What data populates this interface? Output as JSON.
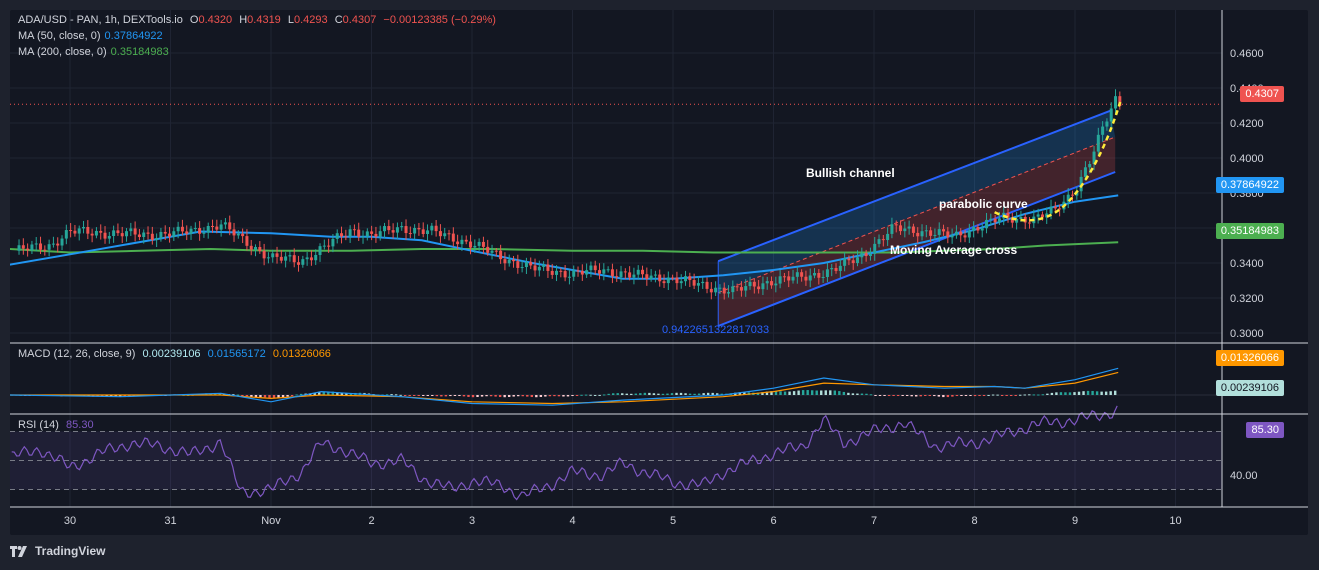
{
  "header": {
    "symbol": "ADA/USD - PAN, 1h, DEXTools.io",
    "o_label": "O",
    "o_value": "0.4320",
    "h_label": "H",
    "h_value": "0.4319",
    "l_label": "L",
    "l_value": "0.4293",
    "c_label": "C",
    "c_value": "0.4307",
    "change": "−0.00123385 (−0.29%)",
    "ma50_label": "MA (50, close, 0)",
    "ma50_value": "0.37864922",
    "ma200_label": "MA (200, close, 0)",
    "ma200_value": "0.35184983",
    "macd_label": "MACD (12, 26, close, 9)",
    "macd_hist": "0.00239106",
    "macd_line": "0.01565172",
    "macd_signal": "0.01326066",
    "rsi_label": "RSI (14)",
    "rsi_value": "85.30"
  },
  "price_tags": {
    "last": "0.4307",
    "ma50": "0.37864922",
    "ma200": "0.35184983",
    "macd_signal": "0.01326066",
    "macd_hist": "0.00239106",
    "rsi": "85.30"
  },
  "annotations": {
    "channel": "Bullish channel",
    "parabolic": "parabolic curve",
    "ma_cross": "Moving Average cross",
    "fib": "0.9422651322817033"
  },
  "brand": "TradingView",
  "colors": {
    "up": "#26a69a",
    "down": "#ef5350",
    "ma50": "#2196f3",
    "ma200": "#4caf50",
    "macd": "#2196f3",
    "signal": "#ff9800",
    "rsi": "#7e57c2",
    "annotation": "#ffeb3b"
  },
  "chart_data": [
    {
      "type": "candlestick",
      "title": "ADA/USD - PAN, 1h, DEXTools.io",
      "x_ticks": [
        "30",
        "31",
        "Nov",
        "2",
        "3",
        "4",
        "5",
        "6",
        "7",
        "8",
        "9",
        "10"
      ],
      "y_ticks": [
        "0.4600",
        "0.4400",
        "0.4200",
        "0.4000",
        "0.3800",
        "0.3600",
        "0.3400",
        "0.3200",
        "0.3000"
      ],
      "ylim": [
        0.29,
        0.47
      ],
      "close_path": [
        [
          29.45,
          0.347
        ],
        [
          29.8,
          0.35
        ],
        [
          30.0,
          0.358
        ],
        [
          30.4,
          0.357
        ],
        [
          30.8,
          0.356
        ],
        [
          31.0,
          0.357
        ],
        [
          31.2,
          0.358
        ],
        [
          31.5,
          0.362
        ],
        [
          31.75,
          0.352
        ],
        [
          32.0,
          0.343
        ],
        [
          32.3,
          0.341
        ],
        [
          32.5,
          0.348
        ],
        [
          32.8,
          0.359
        ],
        [
          33.0,
          0.356
        ],
        [
          33.3,
          0.36
        ],
        [
          33.6,
          0.358
        ],
        [
          34.0,
          0.351
        ],
        [
          34.3,
          0.343
        ],
        [
          34.6,
          0.337
        ],
        [
          35.0,
          0.334
        ],
        [
          35.3,
          0.336
        ],
        [
          35.6,
          0.333
        ],
        [
          36.0,
          0.331
        ],
        [
          36.3,
          0.327
        ],
        [
          36.6,
          0.324
        ],
        [
          37.0,
          0.33
        ],
        [
          37.3,
          0.332
        ],
        [
          37.6,
          0.336
        ],
        [
          37.9,
          0.345
        ],
        [
          38.2,
          0.36
        ],
        [
          38.5,
          0.358
        ],
        [
          38.8,
          0.355
        ],
        [
          39.0,
          0.36
        ],
        [
          39.3,
          0.366
        ],
        [
          39.6,
          0.365
        ],
        [
          39.8,
          0.37
        ],
        [
          40.0,
          0.382
        ],
        [
          40.15,
          0.398
        ],
        [
          40.3,
          0.42
        ],
        [
          40.4,
          0.434
        ],
        [
          40.45,
          0.431
        ]
      ],
      "ma50": [
        [
          29.4,
          0.339
        ],
        [
          30.0,
          0.345
        ],
        [
          30.7,
          0.352
        ],
        [
          31.3,
          0.358
        ],
        [
          32.0,
          0.357
        ],
        [
          32.6,
          0.355
        ],
        [
          33.0,
          0.355
        ],
        [
          33.5,
          0.353
        ],
        [
          34.0,
          0.347
        ],
        [
          34.6,
          0.34
        ],
        [
          35.0,
          0.336
        ],
        [
          35.5,
          0.331
        ],
        [
          36.0,
          0.331
        ],
        [
          36.5,
          0.333
        ],
        [
          37.0,
          0.336
        ],
        [
          37.5,
          0.34
        ],
        [
          38.0,
          0.346
        ],
        [
          38.5,
          0.352
        ],
        [
          39.0,
          0.359
        ],
        [
          39.5,
          0.368
        ],
        [
          40.0,
          0.375
        ],
        [
          40.43,
          0.3786
        ]
      ],
      "ma200": [
        [
          29.4,
          0.348
        ],
        [
          30.0,
          0.346
        ],
        [
          30.7,
          0.347
        ],
        [
          31.4,
          0.348
        ],
        [
          32.0,
          0.347
        ],
        [
          32.8,
          0.347
        ],
        [
          33.5,
          0.348
        ],
        [
          34.2,
          0.348
        ],
        [
          35.0,
          0.347
        ],
        [
          35.7,
          0.347
        ],
        [
          36.4,
          0.346
        ],
        [
          37.0,
          0.346
        ],
        [
          37.6,
          0.346
        ],
        [
          38.2,
          0.346
        ],
        [
          38.7,
          0.347
        ],
        [
          39.2,
          0.348
        ],
        [
          39.7,
          0.35
        ],
        [
          40.43,
          0.3518
        ]
      ],
      "channel_upper": [
        [
          36.45,
          0.341
        ],
        [
          40.35,
          0.427
        ]
      ],
      "channel_middle": [
        [
          36.45,
          0.323
        ],
        [
          40.4,
          0.412
        ]
      ],
      "channel_lower": [
        [
          36.45,
          0.304
        ],
        [
          40.4,
          0.392
        ]
      ],
      "last_price": 0.4307
    },
    {
      "type": "line",
      "title": "MACD (12, 26, close, 9)",
      "series": [
        {
          "name": "MACD",
          "values": [
            [
              29.4,
              0.0
            ],
            [
              30.5,
              -0.001
            ],
            [
              31.5,
              0.001
            ],
            [
              32.0,
              -0.004
            ],
            [
              32.5,
              0.002
            ],
            [
              33.3,
              -0.001
            ],
            [
              34.0,
              -0.005
            ],
            [
              34.8,
              -0.006
            ],
            [
              35.5,
              -0.003
            ],
            [
              36.5,
              0.0
            ],
            [
              37.0,
              0.004
            ],
            [
              37.5,
              0.01
            ],
            [
              38.0,
              0.006
            ],
            [
              38.7,
              0.004
            ],
            [
              39.2,
              0.005
            ],
            [
              39.5,
              0.004
            ],
            [
              40.0,
              0.009
            ],
            [
              40.43,
              0.0157
            ]
          ]
        },
        {
          "name": "Signal",
          "values": [
            [
              29.4,
              0.0
            ],
            [
              30.5,
              0.0
            ],
            [
              31.5,
              0.0
            ],
            [
              32.0,
              -0.002
            ],
            [
              32.5,
              0.0
            ],
            [
              33.3,
              -0.001
            ],
            [
              34.0,
              -0.004
            ],
            [
              34.8,
              -0.005
            ],
            [
              35.5,
              -0.004
            ],
            [
              36.5,
              -0.001
            ],
            [
              37.0,
              0.002
            ],
            [
              37.5,
              0.007
            ],
            [
              38.0,
              0.006
            ],
            [
              38.7,
              0.005
            ],
            [
              39.2,
              0.005
            ],
            [
              39.5,
              0.004
            ],
            [
              40.0,
              0.007
            ],
            [
              40.43,
              0.0133
            ]
          ]
        }
      ],
      "histogram_last": 0.00239106
    },
    {
      "type": "line",
      "title": "RSI (14)",
      "ylim": [
        20,
        90
      ],
      "levels": [
        70,
        50,
        30
      ],
      "y_ticks": [
        "40.00"
      ],
      "values": [
        [
          29.4,
          52
        ],
        [
          29.7,
          58
        ],
        [
          30.0,
          45
        ],
        [
          30.3,
          55
        ],
        [
          30.6,
          62
        ],
        [
          30.9,
          60
        ],
        [
          31.2,
          54
        ],
        [
          31.5,
          63
        ],
        [
          31.7,
          28
        ],
        [
          32.0,
          30
        ],
        [
          32.3,
          42
        ],
        [
          32.5,
          62
        ],
        [
          32.7,
          58
        ],
        [
          33.0,
          48
        ],
        [
          33.3,
          50
        ],
        [
          33.5,
          38
        ],
        [
          33.8,
          30
        ],
        [
          34.0,
          36
        ],
        [
          34.3,
          33
        ],
        [
          34.5,
          25
        ],
        [
          34.8,
          34
        ],
        [
          35.0,
          42
        ],
        [
          35.3,
          40
        ],
        [
          35.5,
          48
        ],
        [
          35.8,
          40
        ],
        [
          36.0,
          35
        ],
        [
          36.3,
          33
        ],
        [
          36.5,
          42
        ],
        [
          37.0,
          55
        ],
        [
          37.3,
          60
        ],
        [
          37.5,
          78
        ],
        [
          37.7,
          62
        ],
        [
          38.0,
          70
        ],
        [
          38.3,
          76
        ],
        [
          38.6,
          60
        ],
        [
          39.0,
          62
        ],
        [
          39.3,
          68
        ],
        [
          39.6,
          75
        ],
        [
          40.0,
          78
        ],
        [
          40.3,
          82
        ],
        [
          40.43,
          85.3
        ]
      ]
    }
  ]
}
